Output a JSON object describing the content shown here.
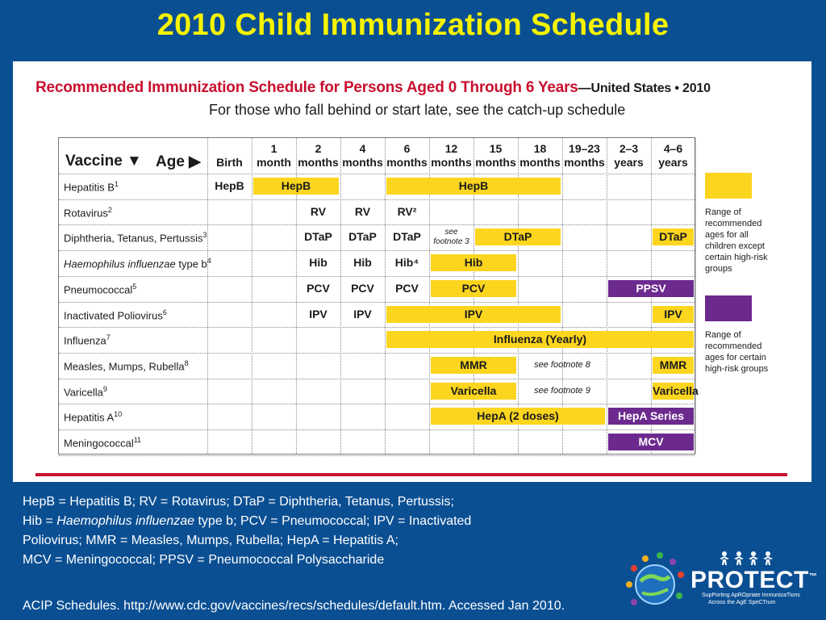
{
  "slide": {
    "title": "2010 Child Immunization Schedule"
  },
  "schedule": {
    "title": "Recommended Immunization Schedule for Persons Aged 0 Through 6 Years",
    "title_suffix": "—United States • 2010",
    "subtitle": "For those who fall behind or start late, see the catch-up schedule",
    "vaccine_header": "Vaccine ▼",
    "age_header": "Age ▶",
    "ages": [
      [
        "Birth"
      ],
      [
        "1",
        "month"
      ],
      [
        "2",
        "months"
      ],
      [
        "4",
        "months"
      ],
      [
        "6",
        "months"
      ],
      [
        "12",
        "months"
      ],
      [
        "15",
        "months"
      ],
      [
        "18",
        "months"
      ],
      [
        "19–23",
        "months"
      ],
      [
        "2–3",
        "years"
      ],
      [
        "4–6",
        "years"
      ]
    ],
    "vaccines": [
      {
        "name": "Hepatitis B",
        "sup": "1",
        "italic": false
      },
      {
        "name": "Rotavirus",
        "sup": "2",
        "italic": false
      },
      {
        "name": "Diphtheria, Tetanus, Pertussis",
        "sup": "3",
        "italic": false
      },
      {
        "name": "Haemophilus influenzae",
        "suffix": " type b",
        "sup": "4",
        "italic": true
      },
      {
        "name": "Pneumococcal",
        "sup": "5",
        "italic": false
      },
      {
        "name": "Inactivated Poliovirus",
        "sup": "6",
        "italic": false
      },
      {
        "name": "Influenza",
        "sup": "7",
        "italic": false
      },
      {
        "name": "Measles, Mumps, Rubella",
        "sup": "8",
        "italic": false
      },
      {
        "name": "Varicella",
        "sup": "9",
        "italic": false
      },
      {
        "name": "Hepatitis A",
        "sup": "10",
        "italic": false
      },
      {
        "name": "Meningococcal",
        "sup": "11",
        "italic": false
      }
    ],
    "cells": [
      {
        "row": 0,
        "from": 0,
        "to": 0,
        "text": "HepB",
        "kind": "plain"
      },
      {
        "row": 0,
        "from": 1,
        "to": 2,
        "text": "HepB",
        "kind": "yellow"
      },
      {
        "row": 0,
        "from": 4,
        "to": 7,
        "text": "HepB",
        "kind": "yellow"
      },
      {
        "row": 1,
        "from": 2,
        "to": 2,
        "text": "RV",
        "kind": "plain"
      },
      {
        "row": 1,
        "from": 3,
        "to": 3,
        "text": "RV",
        "kind": "plain"
      },
      {
        "row": 1,
        "from": 4,
        "to": 4,
        "text": "RV²",
        "kind": "plain"
      },
      {
        "row": 2,
        "from": 2,
        "to": 2,
        "text": "DTaP",
        "kind": "plain"
      },
      {
        "row": 2,
        "from": 3,
        "to": 3,
        "text": "DTaP",
        "kind": "plain"
      },
      {
        "row": 2,
        "from": 4,
        "to": 4,
        "text": "DTaP",
        "kind": "plain"
      },
      {
        "row": 2,
        "from": 6,
        "to": 7,
        "text": "DTaP",
        "kind": "yellow"
      },
      {
        "row": 2,
        "from": 10,
        "to": 10,
        "text": "DTaP",
        "kind": "yellow"
      },
      {
        "row": 3,
        "from": 2,
        "to": 2,
        "text": "Hib",
        "kind": "plain"
      },
      {
        "row": 3,
        "from": 3,
        "to": 3,
        "text": "Hib",
        "kind": "plain"
      },
      {
        "row": 3,
        "from": 4,
        "to": 4,
        "text": "Hib⁴",
        "kind": "plain"
      },
      {
        "row": 3,
        "from": 5,
        "to": 6,
        "text": "Hib",
        "kind": "yellow"
      },
      {
        "row": 4,
        "from": 2,
        "to": 2,
        "text": "PCV",
        "kind": "plain"
      },
      {
        "row": 4,
        "from": 3,
        "to": 3,
        "text": "PCV",
        "kind": "plain"
      },
      {
        "row": 4,
        "from": 4,
        "to": 4,
        "text": "PCV",
        "kind": "plain"
      },
      {
        "row": 4,
        "from": 5,
        "to": 6,
        "text": "PCV",
        "kind": "yellow"
      },
      {
        "row": 4,
        "from": 9,
        "to": 10,
        "text": "PPSV",
        "kind": "purple"
      },
      {
        "row": 5,
        "from": 2,
        "to": 2,
        "text": "IPV",
        "kind": "plain"
      },
      {
        "row": 5,
        "from": 3,
        "to": 3,
        "text": "IPV",
        "kind": "plain"
      },
      {
        "row": 5,
        "from": 4,
        "to": 7,
        "text": "IPV",
        "kind": "yellow"
      },
      {
        "row": 5,
        "from": 10,
        "to": 10,
        "text": "IPV",
        "kind": "yellow"
      },
      {
        "row": 6,
        "from": 4,
        "to": 10,
        "text": "Influenza (Yearly)",
        "kind": "yellow"
      },
      {
        "row": 7,
        "from": 5,
        "to": 6,
        "text": "MMR",
        "kind": "yellow"
      },
      {
        "row": 7,
        "from": 10,
        "to": 10,
        "text": "MMR",
        "kind": "yellow"
      },
      {
        "row": 8,
        "from": 5,
        "to": 6,
        "text": "Varicella",
        "kind": "yellow"
      },
      {
        "row": 8,
        "from": 10,
        "to": 10,
        "text": "Varicella",
        "kind": "yellow"
      },
      {
        "row": 9,
        "from": 5,
        "to": 8,
        "text": "HepA (2 doses)",
        "kind": "yellow"
      },
      {
        "row": 9,
        "from": 9,
        "to": 10,
        "text": "HepA Series",
        "kind": "purple"
      },
      {
        "row": 10,
        "from": 9,
        "to": 10,
        "text": "MCV",
        "kind": "purple"
      }
    ],
    "footnotes": [
      {
        "row": 2,
        "col": 5,
        "text": "see footnote 3",
        "stacked": true
      },
      {
        "row": 7,
        "col": 7,
        "text": "see footnote 8",
        "stacked": false
      },
      {
        "row": 8,
        "col": 7,
        "text": "see footnote 9",
        "stacked": false
      }
    ],
    "legend": [
      {
        "color": "#fbd51e",
        "lines": [
          "Range of",
          "recommended",
          "ages for all",
          "children except",
          "certain high-risk",
          "groups"
        ]
      },
      {
        "color": "#6c2a8e",
        "lines": [
          "Range of",
          "recommended",
          "ages for certain",
          "high-risk groups"
        ]
      }
    ]
  },
  "abbreviations": {
    "line1": "HepB = Hepatitis B; RV = Rotavirus; DTaP = Diphtheria, Tetanus, Pertussis;",
    "line2_pre": "Hib = ",
    "line2_italic": "Haemophilus influenzae",
    "line2_post": " type b; PCV = Pneumococcal; IPV = Inactivated",
    "line3": "Poliovirus; MMR = Measles, Mumps, Rubella; HepA = Hepatitis A;",
    "line4": "MCV = Meningococcal; PPSV = Pneumococcal Polysaccharide"
  },
  "citation": "ACIP Schedules. http://www.cdc.gov/vaccines/recs/schedules/default.htm. Accessed Jan 2010.",
  "logo": {
    "name": "PROTECT",
    "tm": "™",
    "tagline_1": "SupPorting ApROpriate ImmunizaTions",
    "tagline_2": "Across the AgE SpeCTrum"
  },
  "colors": {
    "background": "#0b4f93",
    "title": "#f5f300",
    "yellow_bar": "#fbd51e",
    "purple_bar": "#6c2a8e",
    "red_accent": "#c8102e"
  }
}
